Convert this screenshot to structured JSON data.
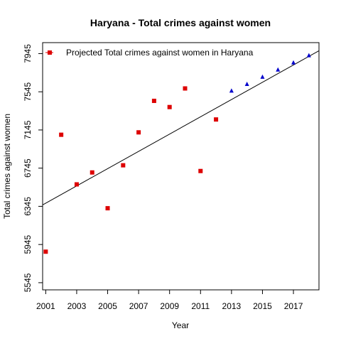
{
  "chart_data": {
    "type": "scatter",
    "title": "Haryana  -  Total crimes against women",
    "xlabel": "Year",
    "ylabel": "Total crimes against women",
    "xlim": [
      2000.8,
      2018.65
    ],
    "ylim": [
      5470,
      8060
    ],
    "xticks": [
      2001,
      2003,
      2005,
      2007,
      2009,
      2011,
      2013,
      2015,
      2017
    ],
    "yticks": [
      5545,
      5945,
      6345,
      6745,
      7145,
      7545,
      7945
    ],
    "grid": false,
    "legend": {
      "placement": "top-left",
      "entries": [
        "Projected  Total crimes against women  in  Haryana"
      ]
    },
    "colors": {
      "actual": "#dd0000",
      "projected": "#0000cc",
      "trend": "#000000"
    },
    "series": [
      {
        "kind": "actual",
        "marker": "square",
        "x": [
          2001,
          2002,
          2003,
          2004,
          2005,
          2006,
          2007,
          2008,
          2009,
          2010,
          2011,
          2012
        ],
        "y": [
          5870,
          7095,
          6575,
          6700,
          6325,
          6775,
          7120,
          7450,
          7385,
          7580,
          6715,
          7255
        ]
      },
      {
        "kind": "projected",
        "marker": "triangle",
        "x": [
          2013,
          2014,
          2015,
          2016,
          2017,
          2018
        ],
        "y": [
          7555,
          7625,
          7700,
          7775,
          7850,
          7925
        ]
      }
    ],
    "trend": {
      "x": [
        2000.8,
        2018.65
      ],
      "y": [
        6360,
        7975
      ]
    }
  }
}
